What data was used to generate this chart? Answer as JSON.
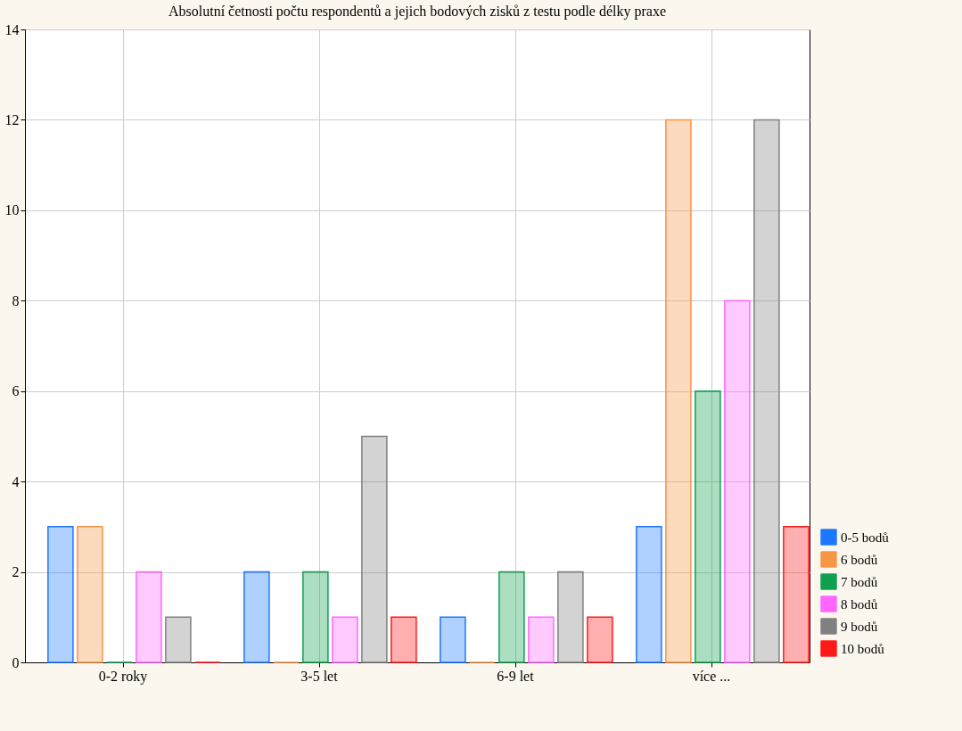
{
  "chart_data": {
    "type": "bar",
    "title": "Absolutní četnosti počtu respondentů a jejich bodových zisků z testu podle délky praxe",
    "categories": [
      "0-2 roky",
      "3-5 let",
      "6-9 let",
      "více ..."
    ],
    "series": [
      {
        "name": "0-5 bodů",
        "color": "#1e78ff",
        "values": [
          3,
          2,
          1,
          3
        ]
      },
      {
        "name": "6 bodů",
        "color": "#f79646",
        "values": [
          3,
          0,
          0,
          12
        ]
      },
      {
        "name": "7 bodů",
        "color": "#10a050",
        "values": [
          0,
          2,
          2,
          6
        ]
      },
      {
        "name": "8 bodů",
        "color": "#ff66ff",
        "values": [
          2,
          1,
          1,
          8
        ]
      },
      {
        "name": "9 bodů",
        "color": "#808080",
        "values": [
          1,
          5,
          2,
          12
        ]
      },
      {
        "name": "10 bodů",
        "color": "#ff1a1a",
        "values": [
          0,
          1,
          1,
          3
        ]
      }
    ],
    "ylim": [
      0,
      14
    ],
    "yticks": [
      0,
      2,
      4,
      6,
      8,
      10,
      12,
      14
    ],
    "grid": true,
    "legend": "bottom right"
  }
}
